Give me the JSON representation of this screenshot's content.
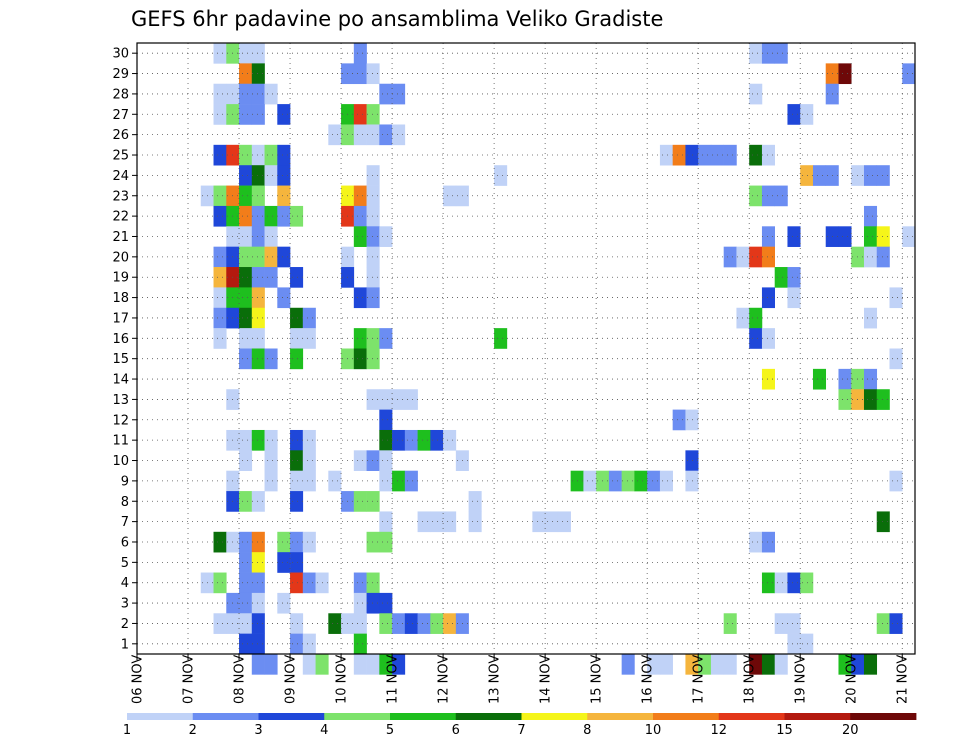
{
  "chart_data": {
    "type": "heatmap",
    "title": "GEFS 6hr padavine po ansamblima Veliko Gradiste",
    "x_tick_labels": [
      "06 NOV",
      "07 NOV",
      "08 NOV",
      "09 NOV",
      "10 NOV",
      "11 NOV",
      "12 NOV",
      "13 NOV",
      "14 NOV",
      "15 NOV",
      "16 NOV",
      "17 NOV",
      "18 NOV",
      "19 NOV",
      "20 NOV",
      "21 NOV"
    ],
    "y_tick_labels": [
      "1",
      "2",
      "3",
      "4",
      "5",
      "6",
      "7",
      "8",
      "9",
      "10",
      "11",
      "12",
      "13",
      "14",
      "15",
      "16",
      "17",
      "18",
      "19",
      "20",
      "21",
      "22",
      "23",
      "24",
      "25",
      "26",
      "27",
      "28",
      "29",
      "30"
    ],
    "x_range_days": [
      0,
      15.25
    ],
    "y_range_members": [
      0.5,
      30.5
    ],
    "grid": "dotted",
    "colorbar": {
      "labels": [
        "1",
        "2",
        "3",
        "4",
        "5",
        "6",
        "7",
        "8",
        "10",
        "12",
        "15",
        "20"
      ],
      "colors": [
        "#c0d2f7",
        "#6b8df2",
        "#1f47d9",
        "#7de36b",
        "#1ebf1e",
        "#0a6e0a",
        "#f5f51a",
        "#f5b53d",
        "#f27d1a",
        "#e33719",
        "#b31a0f",
        "#6e0808"
      ]
    },
    "cells": [
      [
        7.5,
        30,
        1
      ],
      [
        7.75,
        30,
        4
      ],
      [
        8,
        30,
        1
      ],
      [
        8.25,
        30,
        1
      ],
      [
        10.25,
        30,
        2
      ],
      [
        18,
        30,
        1
      ],
      [
        18.25,
        30,
        2
      ],
      [
        18.5,
        30,
        2
      ],
      [
        8,
        29,
        10
      ],
      [
        8.25,
        29,
        6
      ],
      [
        10,
        29,
        2
      ],
      [
        10.25,
        29,
        2
      ],
      [
        10.5,
        29,
        1
      ],
      [
        19.5,
        29,
        10
      ],
      [
        19.75,
        29,
        20
      ],
      [
        21,
        29,
        2
      ],
      [
        7.5,
        28,
        1
      ],
      [
        7.75,
        28,
        1
      ],
      [
        8,
        28,
        2
      ],
      [
        8.25,
        28,
        2
      ],
      [
        8.5,
        28,
        1
      ],
      [
        10.75,
        28,
        2
      ],
      [
        11,
        28,
        2
      ],
      [
        18,
        28,
        1
      ],
      [
        19.5,
        28,
        2
      ],
      [
        7.5,
        27,
        1
      ],
      [
        7.75,
        27,
        4
      ],
      [
        8,
        27,
        2
      ],
      [
        8.25,
        27,
        2
      ],
      [
        8.75,
        27,
        3
      ],
      [
        10,
        27,
        5
      ],
      [
        10.25,
        27,
        12
      ],
      [
        10.5,
        27,
        4
      ],
      [
        18.75,
        27,
        3
      ],
      [
        19,
        27,
        1
      ],
      [
        9.75,
        26,
        1
      ],
      [
        10,
        26,
        4
      ],
      [
        10.25,
        26,
        1
      ],
      [
        10.5,
        26,
        1
      ],
      [
        10.75,
        26,
        2
      ],
      [
        11,
        26,
        1
      ],
      [
        7.5,
        25,
        3
      ],
      [
        7.75,
        25,
        12
      ],
      [
        8,
        25,
        4
      ],
      [
        8.25,
        25,
        1
      ],
      [
        8.5,
        25,
        4
      ],
      [
        8.75,
        25,
        3
      ],
      [
        16.25,
        25,
        1
      ],
      [
        16.5,
        25,
        10
      ],
      [
        16.75,
        25,
        3
      ],
      [
        17,
        25,
        2
      ],
      [
        17.25,
        25,
        2
      ],
      [
        17.5,
        25,
        2
      ],
      [
        18,
        25,
        6
      ],
      [
        18.25,
        25,
        1
      ],
      [
        8,
        24,
        3
      ],
      [
        8.25,
        24,
        6
      ],
      [
        8.5,
        24,
        1
      ],
      [
        8.75,
        24,
        3
      ],
      [
        10.5,
        24,
        1
      ],
      [
        13,
        24,
        1
      ],
      [
        19,
        24,
        8
      ],
      [
        19.25,
        24,
        2
      ],
      [
        19.5,
        24,
        2
      ],
      [
        20,
        24,
        1
      ],
      [
        20.25,
        24,
        2
      ],
      [
        20.5,
        24,
        2
      ],
      [
        7.25,
        23,
        1
      ],
      [
        7.5,
        23,
        4
      ],
      [
        7.75,
        23,
        10
      ],
      [
        8,
        23,
        5
      ],
      [
        8.25,
        23,
        4
      ],
      [
        8.75,
        23,
        8
      ],
      [
        10,
        23,
        7
      ],
      [
        10.25,
        23,
        10
      ],
      [
        10.5,
        23,
        1
      ],
      [
        12,
        23,
        1
      ],
      [
        12.25,
        23,
        1
      ],
      [
        18,
        23,
        4
      ],
      [
        18.25,
        23,
        2
      ],
      [
        18.5,
        23,
        2
      ],
      [
        7.5,
        22,
        3
      ],
      [
        7.75,
        22,
        5
      ],
      [
        8,
        22,
        10
      ],
      [
        8.25,
        22,
        2
      ],
      [
        8.5,
        22,
        5
      ],
      [
        8.75,
        22,
        2
      ],
      [
        9,
        22,
        4
      ],
      [
        10,
        22,
        12
      ],
      [
        10.25,
        22,
        2
      ],
      [
        10.5,
        22,
        1
      ],
      [
        20.25,
        22,
        2
      ],
      [
        7.75,
        21,
        1
      ],
      [
        8,
        21,
        1
      ],
      [
        8.25,
        21,
        2
      ],
      [
        8.5,
        21,
        1
      ],
      [
        10.25,
        21,
        5
      ],
      [
        10.5,
        21,
        2
      ],
      [
        10.75,
        21,
        1
      ],
      [
        18.25,
        21,
        2
      ],
      [
        18.75,
        21,
        3
      ],
      [
        19.5,
        21,
        3
      ],
      [
        19.75,
        21,
        3
      ],
      [
        20.25,
        21,
        5
      ],
      [
        20.5,
        21,
        7
      ],
      [
        21,
        21,
        1
      ],
      [
        7.5,
        20,
        2
      ],
      [
        7.75,
        20,
        3
      ],
      [
        8,
        20,
        4
      ],
      [
        8.25,
        20,
        4
      ],
      [
        8.5,
        20,
        8
      ],
      [
        8.75,
        20,
        3
      ],
      [
        10,
        20,
        1
      ],
      [
        10.5,
        20,
        1
      ],
      [
        17.5,
        20,
        2
      ],
      [
        17.75,
        20,
        1
      ],
      [
        18,
        20,
        12
      ],
      [
        18.25,
        20,
        10
      ],
      [
        20,
        20,
        4
      ],
      [
        20.25,
        20,
        1
      ],
      [
        20.5,
        20,
        2
      ],
      [
        7.5,
        19,
        8
      ],
      [
        7.75,
        19,
        15
      ],
      [
        8,
        19,
        6
      ],
      [
        8.25,
        19,
        2
      ],
      [
        8.5,
        19,
        2
      ],
      [
        9,
        19,
        3
      ],
      [
        10,
        19,
        3
      ],
      [
        10.5,
        19,
        1
      ],
      [
        18.5,
        19,
        5
      ],
      [
        18.75,
        19,
        2
      ],
      [
        7.5,
        18,
        1
      ],
      [
        7.75,
        18,
        5
      ],
      [
        8,
        18,
        5
      ],
      [
        8.25,
        18,
        8
      ],
      [
        8.75,
        18,
        2
      ],
      [
        10.25,
        18,
        3
      ],
      [
        10.5,
        18,
        2
      ],
      [
        18.25,
        18,
        3
      ],
      [
        18.75,
        18,
        1
      ],
      [
        20.75,
        18,
        1
      ],
      [
        7.5,
        17,
        2
      ],
      [
        7.75,
        17,
        3
      ],
      [
        8,
        17,
        6
      ],
      [
        8.25,
        17,
        7
      ],
      [
        9,
        17,
        6
      ],
      [
        9.25,
        17,
        2
      ],
      [
        17.75,
        17,
        1
      ],
      [
        18,
        17,
        5
      ],
      [
        20.25,
        17,
        1
      ],
      [
        7.5,
        16,
        1
      ],
      [
        8,
        16,
        1
      ],
      [
        8.25,
        16,
        1
      ],
      [
        9,
        16,
        1
      ],
      [
        9.25,
        16,
        1
      ],
      [
        10.25,
        16,
        5
      ],
      [
        10.5,
        16,
        4
      ],
      [
        10.75,
        16,
        2
      ],
      [
        13,
        16,
        5
      ],
      [
        18,
        16,
        3
      ],
      [
        18.25,
        16,
        1
      ],
      [
        8,
        15,
        2
      ],
      [
        8.25,
        15,
        5
      ],
      [
        8.5,
        15,
        2
      ],
      [
        9,
        15,
        5
      ],
      [
        10,
        15,
        4
      ],
      [
        10.25,
        15,
        6
      ],
      [
        10.5,
        15,
        4
      ],
      [
        20.75,
        15,
        1
      ],
      [
        18.25,
        14,
        7
      ],
      [
        19.25,
        14,
        5
      ],
      [
        19.75,
        14,
        2
      ],
      [
        20,
        14,
        4
      ],
      [
        20.25,
        14,
        2
      ],
      [
        7.75,
        13,
        1
      ],
      [
        10.5,
        13,
        1
      ],
      [
        10.75,
        13,
        1
      ],
      [
        11,
        13,
        1
      ],
      [
        11.25,
        13,
        1
      ],
      [
        19.75,
        13,
        4
      ],
      [
        20,
        13,
        8
      ],
      [
        20.25,
        13,
        6
      ],
      [
        20.5,
        13,
        5
      ],
      [
        10.75,
        12,
        3
      ],
      [
        16.5,
        12,
        2
      ],
      [
        16.75,
        12,
        1
      ],
      [
        7.75,
        11,
        1
      ],
      [
        8,
        11,
        1
      ],
      [
        8.25,
        11,
        5
      ],
      [
        8.5,
        11,
        1
      ],
      [
        9,
        11,
        3
      ],
      [
        9.25,
        11,
        1
      ],
      [
        10.75,
        11,
        6
      ],
      [
        11,
        11,
        3
      ],
      [
        11.25,
        11,
        2
      ],
      [
        11.5,
        11,
        5
      ],
      [
        11.75,
        11,
        3
      ],
      [
        12,
        11,
        1
      ],
      [
        8,
        10,
        1
      ],
      [
        8.5,
        10,
        1
      ],
      [
        9,
        10,
        6
      ],
      [
        9.25,
        10,
        1
      ],
      [
        10.25,
        10,
        1
      ],
      [
        10.5,
        10,
        2
      ],
      [
        10.75,
        10,
        1
      ],
      [
        12.25,
        10,
        1
      ],
      [
        16.75,
        10,
        3
      ],
      [
        7.75,
        9,
        1
      ],
      [
        8.5,
        9,
        1
      ],
      [
        9,
        9,
        1
      ],
      [
        9.25,
        9,
        1
      ],
      [
        9.75,
        9,
        1
      ],
      [
        10.75,
        9,
        1
      ],
      [
        11,
        9,
        5
      ],
      [
        11.25,
        9,
        2
      ],
      [
        14.5,
        9,
        5
      ],
      [
        14.75,
        9,
        1
      ],
      [
        15,
        9,
        4
      ],
      [
        15.25,
        9,
        2
      ],
      [
        15.5,
        9,
        4
      ],
      [
        15.75,
        9,
        5
      ],
      [
        16,
        9,
        2
      ],
      [
        16.25,
        9,
        1
      ],
      [
        16.75,
        9,
        1
      ],
      [
        20.75,
        9,
        1
      ],
      [
        7.75,
        8,
        3
      ],
      [
        8,
        8,
        4
      ],
      [
        8.25,
        8,
        1
      ],
      [
        9,
        8,
        3
      ],
      [
        10,
        8,
        2
      ],
      [
        10.25,
        8,
        4
      ],
      [
        10.5,
        8,
        4
      ],
      [
        12.5,
        8,
        1
      ],
      [
        10.75,
        7,
        1
      ],
      [
        11.5,
        7,
        1
      ],
      [
        11.75,
        7,
        1
      ],
      [
        12,
        7,
        1
      ],
      [
        12.5,
        7,
        1
      ],
      [
        13.75,
        7,
        1
      ],
      [
        14,
        7,
        1
      ],
      [
        14.25,
        7,
        1
      ],
      [
        20.5,
        7,
        6
      ],
      [
        7.5,
        6,
        6
      ],
      [
        7.75,
        6,
        1
      ],
      [
        8,
        6,
        2
      ],
      [
        8.25,
        6,
        10
      ],
      [
        8.75,
        6,
        4
      ],
      [
        9,
        6,
        2
      ],
      [
        9.25,
        6,
        1
      ],
      [
        10.5,
        6,
        4
      ],
      [
        10.75,
        6,
        4
      ],
      [
        18,
        6,
        1
      ],
      [
        18.25,
        6,
        2
      ],
      [
        8,
        5,
        2
      ],
      [
        8.25,
        5,
        7
      ],
      [
        8.75,
        5,
        3
      ],
      [
        9,
        5,
        3
      ],
      [
        7.25,
        4,
        1
      ],
      [
        7.5,
        4,
        4
      ],
      [
        8,
        4,
        2
      ],
      [
        8.25,
        4,
        2
      ],
      [
        9,
        4,
        12
      ],
      [
        9.25,
        4,
        2
      ],
      [
        9.5,
        4,
        1
      ],
      [
        10.25,
        4,
        2
      ],
      [
        10.5,
        4,
        4
      ],
      [
        18.25,
        4,
        5
      ],
      [
        18.5,
        4,
        1
      ],
      [
        18.75,
        4,
        3
      ],
      [
        19,
        4,
        4
      ],
      [
        7.75,
        3,
        2
      ],
      [
        8,
        3,
        2
      ],
      [
        8.25,
        3,
        1
      ],
      [
        8.75,
        3,
        1
      ],
      [
        10.25,
        3,
        1
      ],
      [
        10.5,
        3,
        3
      ],
      [
        10.75,
        3,
        3
      ],
      [
        7.5,
        2,
        1
      ],
      [
        7.75,
        2,
        1
      ],
      [
        8,
        2,
        1
      ],
      [
        8.25,
        2,
        3
      ],
      [
        9,
        2,
        1
      ],
      [
        9.75,
        2,
        6
      ],
      [
        10,
        2,
        1
      ],
      [
        10.25,
        2,
        1
      ],
      [
        10.75,
        2,
        4
      ],
      [
        11,
        2,
        2
      ],
      [
        11.25,
        2,
        3
      ],
      [
        11.5,
        2,
        2
      ],
      [
        11.75,
        2,
        4
      ],
      [
        12,
        2,
        8
      ],
      [
        12.25,
        2,
        2
      ],
      [
        17.5,
        2,
        4
      ],
      [
        18.5,
        2,
        1
      ],
      [
        18.75,
        2,
        1
      ],
      [
        20.5,
        2,
        4
      ],
      [
        20.75,
        2,
        3
      ],
      [
        8,
        1,
        3
      ],
      [
        8.25,
        1,
        3
      ],
      [
        9,
        1,
        2
      ],
      [
        9.25,
        1,
        1
      ],
      [
        10.25,
        1,
        5
      ],
      [
        18.75,
        1,
        1
      ],
      [
        19,
        1,
        1
      ],
      [
        8.25,
        0,
        2
      ],
      [
        8.5,
        0,
        2
      ],
      [
        9.25,
        0,
        1
      ],
      [
        9.5,
        0,
        4
      ],
      [
        10.25,
        0,
        1
      ],
      [
        10.5,
        0,
        1
      ],
      [
        10.75,
        0,
        5
      ],
      [
        11,
        0,
        3
      ],
      [
        15.5,
        0,
        2
      ],
      [
        16,
        0,
        1
      ],
      [
        16.25,
        0,
        1
      ],
      [
        16.75,
        0,
        8
      ],
      [
        17,
        0,
        4
      ],
      [
        17.25,
        0,
        1
      ],
      [
        17.5,
        0,
        1
      ],
      [
        18,
        0,
        20
      ],
      [
        18.25,
        0,
        6
      ],
      [
        18.5,
        0,
        1
      ],
      [
        19.75,
        0,
        5
      ],
      [
        20,
        0,
        3
      ],
      [
        20.25,
        0,
        6
      ]
    ]
  }
}
